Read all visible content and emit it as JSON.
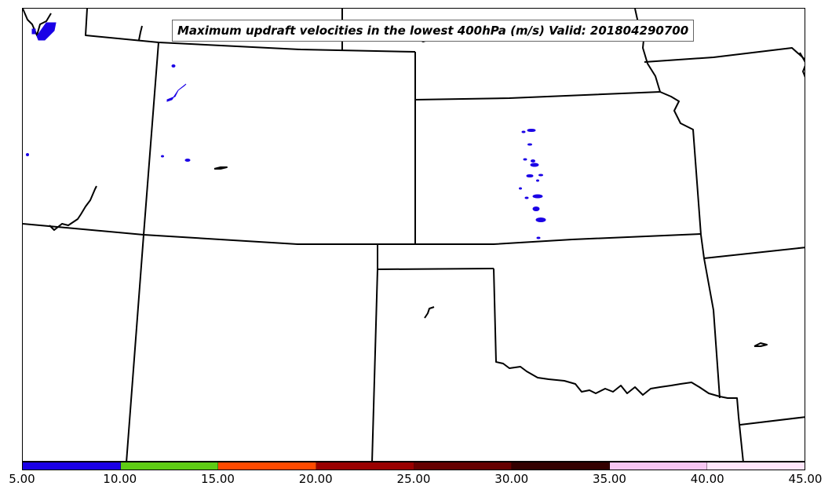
{
  "title": "Maximum updraft velocities in the lowest 400hPa (m/s) Valid: 201804290700",
  "colorbar": {
    "segments": [
      {
        "min": 5,
        "max": 10,
        "color": "#1a00e6"
      },
      {
        "min": 10,
        "max": 15,
        "color": "#5ecc14"
      },
      {
        "min": 15,
        "max": 20,
        "color": "#ff4a00"
      },
      {
        "min": 20,
        "max": 25,
        "color": "#990000"
      },
      {
        "min": 25,
        "max": 30,
        "color": "#660000"
      },
      {
        "min": 30,
        "max": 35,
        "color": "#330000"
      },
      {
        "min": 35,
        "max": 40,
        "color": "#f7c6f2"
      },
      {
        "min": 40,
        "max": 45,
        "color": "#ffe6fb"
      }
    ],
    "tick_labels": [
      "5.00",
      "10.00",
      "15.00",
      "20.00",
      "25.00",
      "30.00",
      "35.00",
      "40.00",
      "45.00"
    ]
  },
  "colors": {
    "boundary": "#000000",
    "updraft_contour": "#1a00e6"
  }
}
